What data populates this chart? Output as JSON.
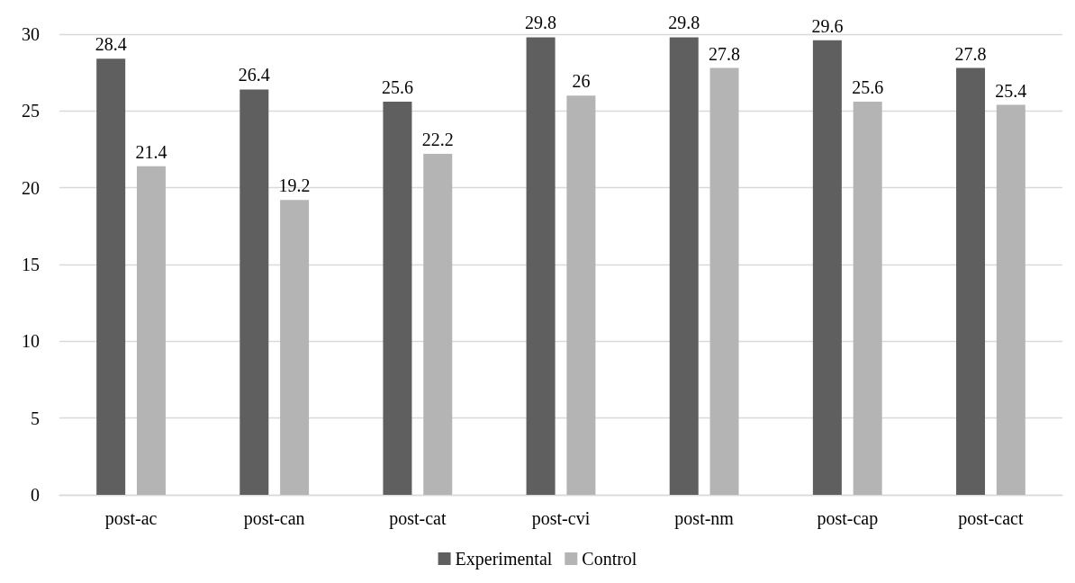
{
  "chart_data": {
    "type": "bar",
    "categories": [
      "post-ac",
      "post-can",
      "post-cat",
      "post-cvi",
      "post-nm",
      "post-cap",
      "post-cact"
    ],
    "series": [
      {
        "name": "Experimental",
        "color": "#5f5f5f",
        "values": [
          28.4,
          26.4,
          25.6,
          29.8,
          29.8,
          29.6,
          27.8
        ]
      },
      {
        "name": "Control",
        "color": "#b4b4b4",
        "values": [
          21.4,
          19.2,
          22.2,
          26,
          27.8,
          25.6,
          25.4
        ]
      }
    ],
    "ylim": [
      0,
      30
    ],
    "yticks": [
      0,
      5,
      10,
      15,
      20,
      25,
      30
    ],
    "grid": "y",
    "legend": "bottom",
    "data_labels": true
  }
}
